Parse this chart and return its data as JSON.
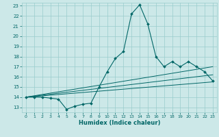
{
  "title": "",
  "xlabel": "Humidex (Indice chaleur)",
  "xlim": [
    -0.5,
    23.5
  ],
  "ylim": [
    12.5,
    23.3
  ],
  "yticks": [
    13,
    14,
    15,
    16,
    17,
    18,
    19,
    20,
    21,
    22,
    23
  ],
  "xticks": [
    0,
    1,
    2,
    3,
    4,
    5,
    6,
    7,
    8,
    9,
    10,
    11,
    12,
    13,
    14,
    15,
    16,
    17,
    18,
    19,
    20,
    21,
    22,
    23
  ],
  "bg_color": "#cce8e8",
  "grid_color": "#99cccc",
  "line_color": "#006666",
  "main_line": {
    "x": [
      0,
      1,
      2,
      3,
      4,
      5,
      6,
      7,
      8,
      9,
      10,
      11,
      12,
      13,
      14,
      15,
      16,
      17,
      18,
      19,
      20,
      21,
      22,
      23
    ],
    "y": [
      14.0,
      14.0,
      14.0,
      13.9,
      13.8,
      12.8,
      13.1,
      13.3,
      13.4,
      15.0,
      16.5,
      17.8,
      18.5,
      22.2,
      23.1,
      21.2,
      18.0,
      17.0,
      17.5,
      17.0,
      17.5,
      17.0,
      16.5,
      15.6
    ]
  },
  "linear_lines": [
    {
      "x": [
        0,
        23
      ],
      "y": [
        14.0,
        17.0
      ]
    },
    {
      "x": [
        0,
        23
      ],
      "y": [
        14.0,
        16.2
      ]
    },
    {
      "x": [
        0,
        23
      ],
      "y": [
        14.0,
        15.5
      ]
    }
  ]
}
